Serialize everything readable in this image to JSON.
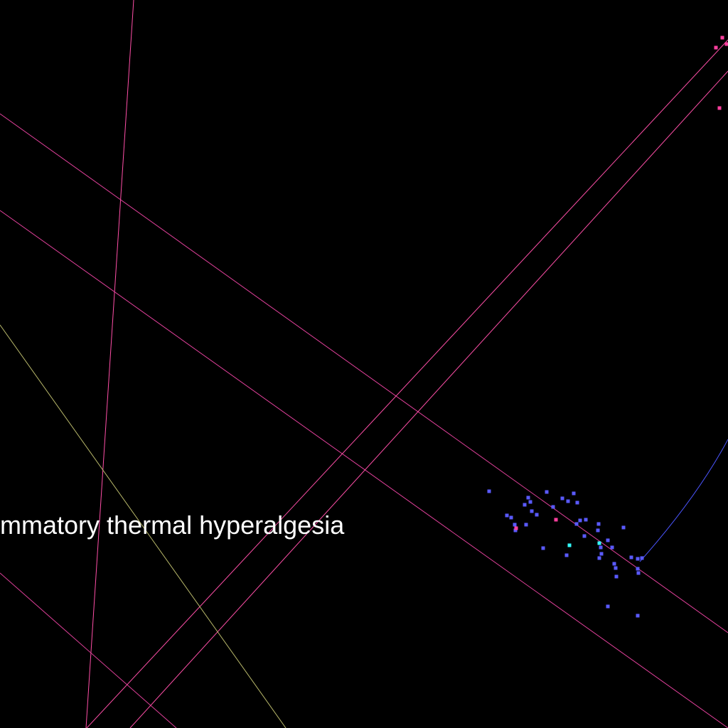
{
  "label": {
    "text": "ammatory thermal hyperalgesia"
  },
  "colors": {
    "background": "#000000",
    "edge_pink": "#ff4fa8",
    "edge_magenta": "#e0409a",
    "edge_olive": "#b8b86a",
    "edge_blue": "#4b55ff",
    "node_blue": "#5a5aff",
    "node_pink": "#ff3f9f",
    "node_cyan": "#33ffff"
  }
}
